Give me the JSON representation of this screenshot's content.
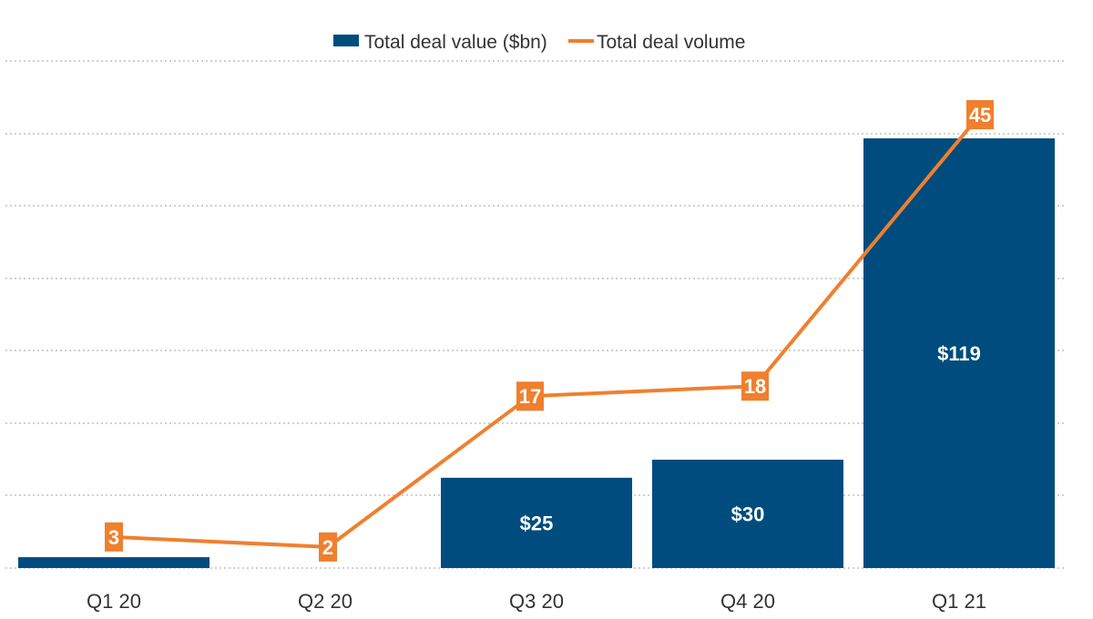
{
  "chart_data": {
    "type": "bar",
    "categories": [
      "Q1 20",
      "Q2 20",
      "Q3 20",
      "Q4 20",
      "Q1 21"
    ],
    "series": [
      {
        "name": "Total deal value ($bn)",
        "type": "bar",
        "values": [
          3,
          0,
          25,
          30,
          119
        ],
        "labels": [
          "",
          "",
          "$25",
          "$30",
          "$119"
        ],
        "color": "#004c7f"
      },
      {
        "name": "Total deal volume",
        "type": "line",
        "values": [
          3,
          2,
          17,
          18,
          45
        ],
        "labels": [
          "3",
          "2",
          "17",
          "18",
          "45"
        ],
        "color": "#f07f2e"
      }
    ],
    "title": "",
    "xlabel": "",
    "ylabel": "",
    "grid": true,
    "legend_position": "top-center"
  }
}
